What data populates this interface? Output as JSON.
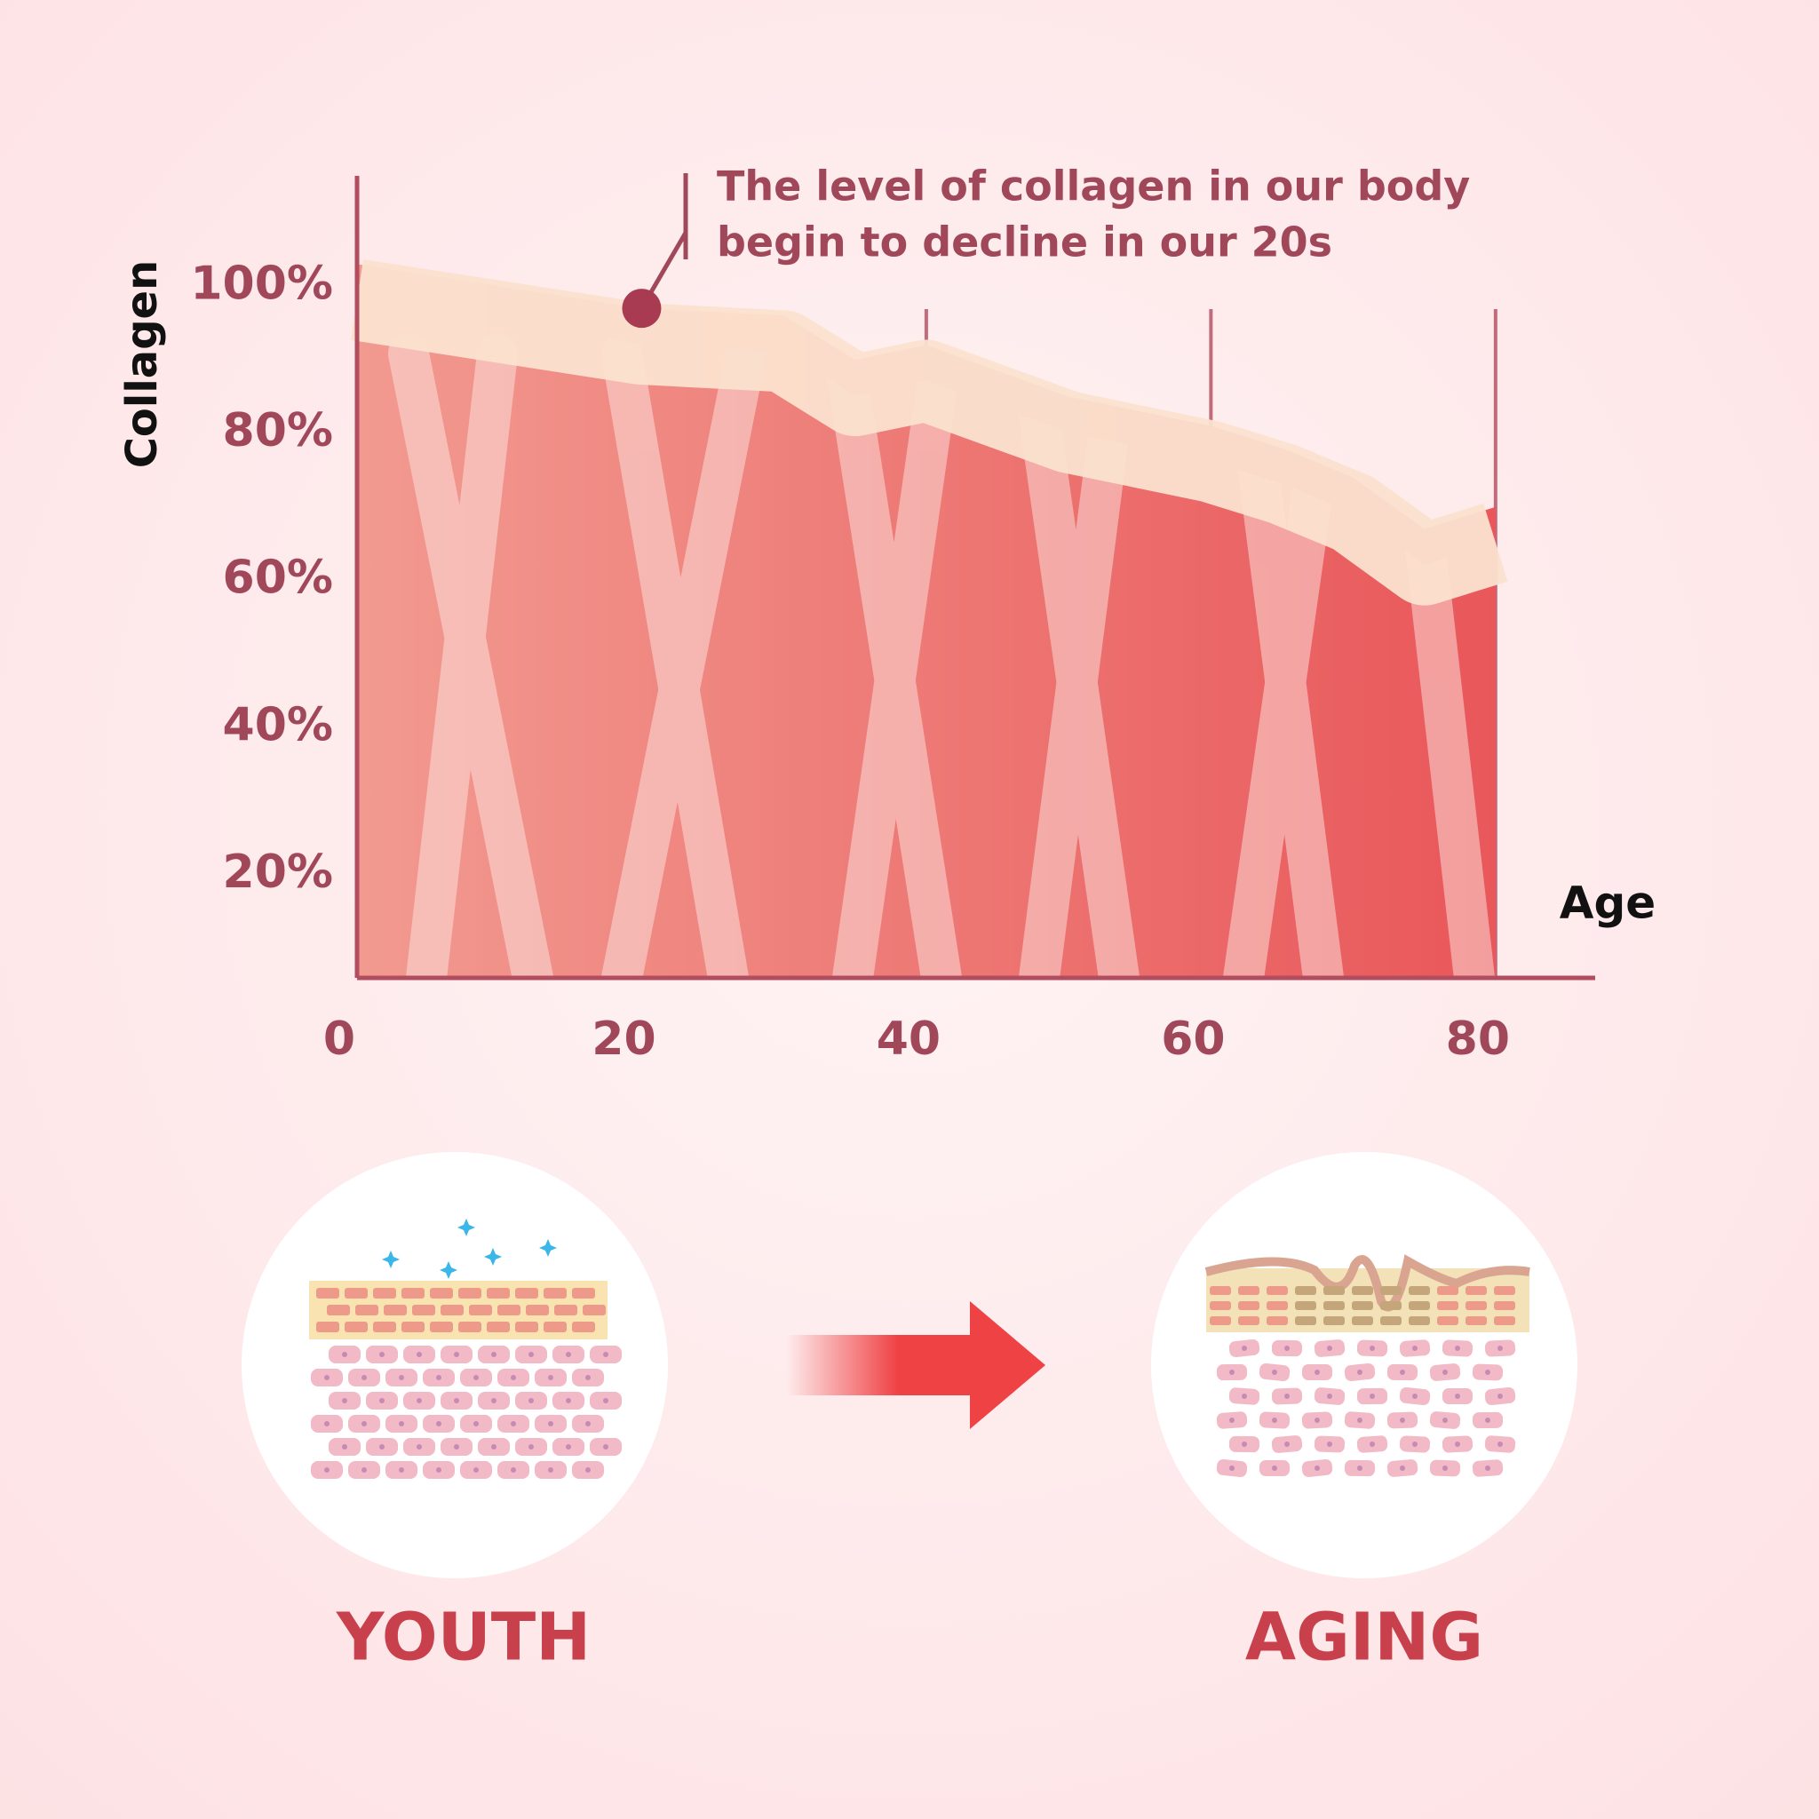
{
  "chart_data": {
    "type": "area",
    "y_label": "Collagen",
    "x_label": "Age",
    "annotation": {
      "lines": [
        "The level of collagen in our body",
        "begin to decline in our 20s"
      ],
      "x": 20
    },
    "x": [
      0,
      10,
      20,
      30,
      35,
      40,
      50,
      60,
      65,
      70,
      75,
      80
    ],
    "values": [
      103,
      100,
      97,
      96,
      90,
      92,
      85,
      81,
      78,
      74,
      67,
      70
    ],
    "color": "#ec6d68",
    "band_color": "#fbe2cf",
    "xlim": [
      0,
      87
    ],
    "ylim": [
      6,
      115
    ],
    "xticks": [
      0,
      20,
      40,
      60,
      80
    ],
    "yticks": [
      {
        "value": 20,
        "label": "20%"
      },
      {
        "value": 40,
        "label": "40%"
      },
      {
        "value": 60,
        "label": "60%"
      },
      {
        "value": 80,
        "label": "80%"
      },
      {
        "value": 100,
        "label": "100%"
      }
    ],
    "grid": true
  },
  "illustration": {
    "labels": [
      "YOUTH",
      "AGING"
    ]
  }
}
